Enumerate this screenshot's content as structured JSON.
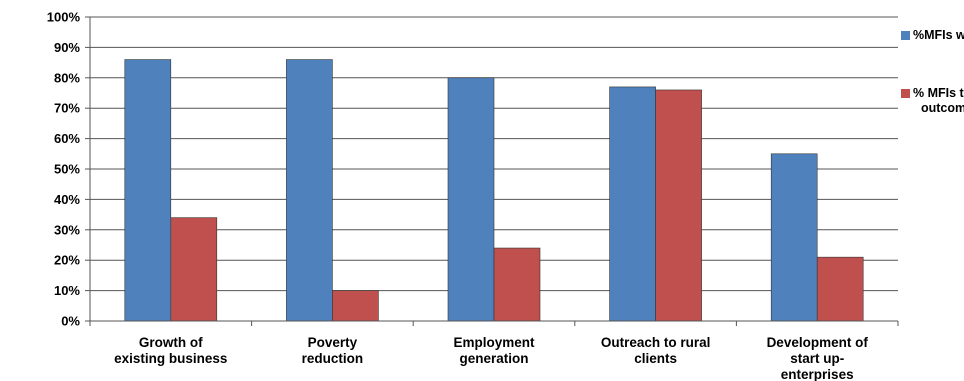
{
  "chart_data": {
    "type": "bar",
    "categories": [
      [
        "Growth of",
        "existing business"
      ],
      [
        "Poverty",
        "reduction"
      ],
      [
        "Employment",
        "generation"
      ],
      [
        "Outreach to rural",
        "clients"
      ],
      [
        "Development of",
        "start up-",
        "enterprises"
      ]
    ],
    "series": [
      {
        "name": "%MFIs with goal",
        "values": [
          86,
          86,
          80,
          77,
          55
        ],
        "color": "#4F81BD"
      },
      {
        "name": [
          "% MFIs tracking",
          "outcomes"
        ],
        "values": [
          34,
          10,
          24,
          76,
          21
        ],
        "color": "#C0504D"
      }
    ],
    "yticks": [
      "0%",
      "10%",
      "20%",
      "30%",
      "40%",
      "50%",
      "60%",
      "70%",
      "80%",
      "90%",
      "100%"
    ],
    "ylim": [
      0,
      100
    ],
    "grid": true,
    "legend": "right"
  }
}
